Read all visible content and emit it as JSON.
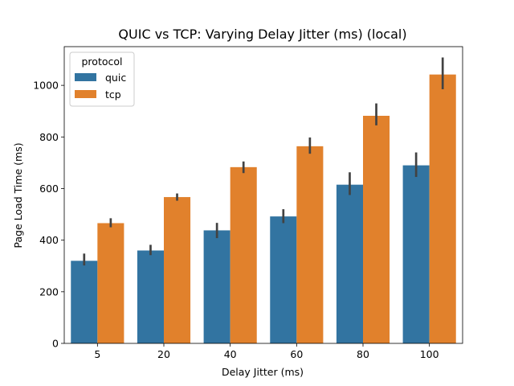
{
  "chart_data": {
    "type": "bar",
    "title": "QUIC vs TCP: Varying Delay Jitter (ms) (local)",
    "xlabel": "Delay Jitter (ms)",
    "ylabel": "Page Load Time (ms)",
    "categories": [
      "5",
      "20",
      "40",
      "60",
      "80",
      "100"
    ],
    "ylim": [
      0,
      1150
    ],
    "yticks": [
      0,
      200,
      400,
      600,
      800,
      1000
    ],
    "legend": {
      "title": "protocol",
      "position": "upper-left"
    },
    "series": [
      {
        "name": "quic",
        "color": "#3274a1",
        "values": [
          320,
          360,
          438,
          492,
          615,
          690
        ],
        "err_low": [
          302,
          342,
          408,
          466,
          575,
          645
        ],
        "err_high": [
          348,
          382,
          467,
          520,
          663,
          740
        ]
      },
      {
        "name": "tcp",
        "color": "#e1812c",
        "values": [
          466,
          567,
          683,
          764,
          882,
          1042
        ],
        "err_low": [
          450,
          553,
          660,
          735,
          845,
          985
        ],
        "err_high": [
          485,
          581,
          705,
          798,
          930,
          1108
        ]
      }
    ],
    "grid": false
  }
}
